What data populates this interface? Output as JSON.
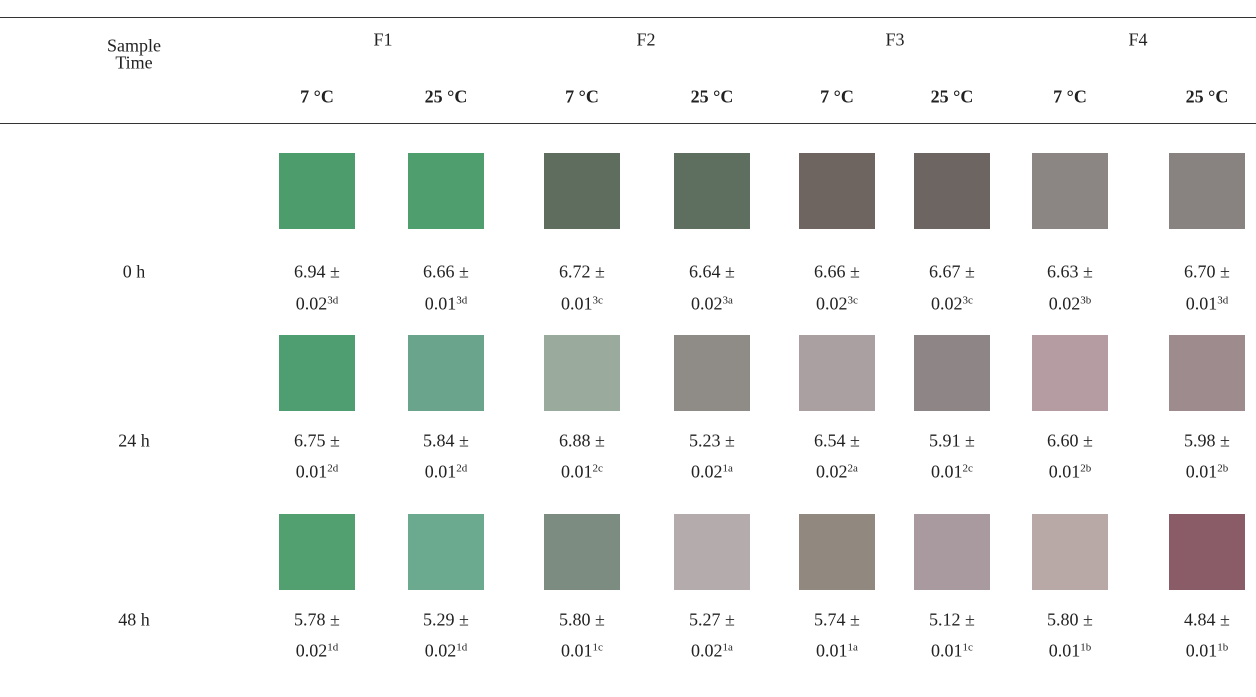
{
  "table": {
    "header": {
      "row_label": [
        "Sample",
        "Time"
      ],
      "groups": [
        "F1",
        "F2",
        "F3",
        "F4"
      ],
      "temperatures": [
        "7 °C",
        "25 °C",
        "7 °C",
        "25 °C",
        "7 °C",
        "25 °C",
        "7 °C",
        "25 °C"
      ]
    },
    "rows": [
      {
        "time": "0 h",
        "cells": [
          {
            "value": "6.94 ±",
            "error": "0.02",
            "letters": "3d"
          },
          {
            "value": "6.66 ±",
            "error": "0.01",
            "letters": "3d"
          },
          {
            "value": "6.72 ±",
            "error": "0.01",
            "letters": "3c"
          },
          {
            "value": "6.64 ±",
            "error": "0.02",
            "letters": "3a"
          },
          {
            "value": "6.66 ±",
            "error": "0.02",
            "letters": "3c"
          },
          {
            "value": "6.67 ±",
            "error": "0.02",
            "letters": "3c"
          },
          {
            "value": "6.63 ±",
            "error": "0.02",
            "letters": "3b"
          },
          {
            "value": "6.70 ±",
            "error": "0.01",
            "letters": "3d"
          }
        ]
      },
      {
        "time": "24 h",
        "cells": [
          {
            "value": "6.75 ±",
            "error": "0.01",
            "letters": "2d"
          },
          {
            "value": "5.84 ±",
            "error": "0.01",
            "letters": "2d"
          },
          {
            "value": "6.88 ±",
            "error": "0.01",
            "letters": "2c"
          },
          {
            "value": "5.23 ±",
            "error": "0.02",
            "letters": "1a"
          },
          {
            "value": "6.54 ±",
            "error": "0.02",
            "letters": "2a"
          },
          {
            "value": "5.91 ±",
            "error": "0.01",
            "letters": "2c"
          },
          {
            "value": "6.60 ±",
            "error": "0.01",
            "letters": "2b"
          },
          {
            "value": "5.98 ±",
            "error": "0.01",
            "letters": "2b"
          }
        ]
      },
      {
        "time": "48 h",
        "cells": [
          {
            "value": "5.78 ±",
            "error": "0.02",
            "letters": "1d"
          },
          {
            "value": "5.29 ±",
            "error": "0.02",
            "letters": "1d"
          },
          {
            "value": "5.80 ±",
            "error": "0.01",
            "letters": "1c"
          },
          {
            "value": "5.27 ±",
            "error": "0.02",
            "letters": "1a"
          },
          {
            "value": "5.74 ±",
            "error": "0.01",
            "letters": "1a"
          },
          {
            "value": "5.12 ±",
            "error": "0.01",
            "letters": "1c"
          },
          {
            "value": "5.80 ±",
            "error": "0.01",
            "letters": "1b"
          },
          {
            "value": "4.84 ±",
            "error": "0.01",
            "letters": "1b"
          }
        ]
      }
    ]
  }
}
